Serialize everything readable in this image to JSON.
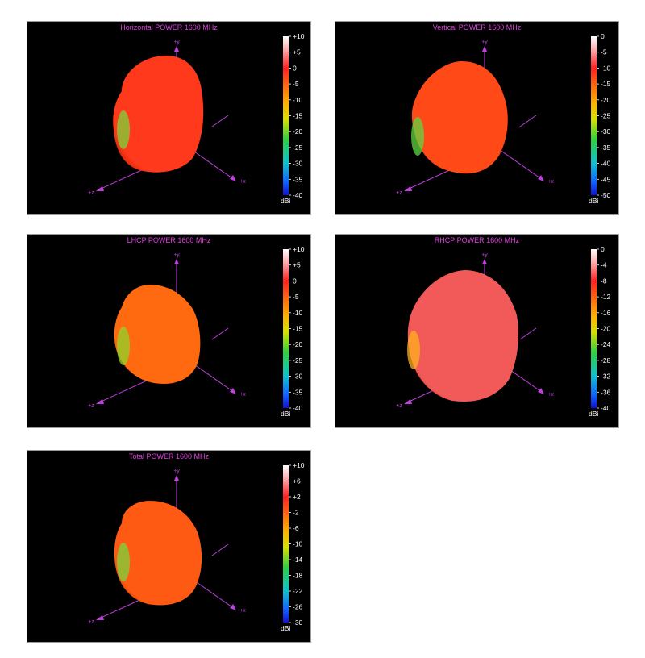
{
  "panels": [
    {
      "title": "Horizontal POWER 1600  MHz",
      "scale": {
        "min": -40,
        "max": 10,
        "ticks": [
          "+10",
          "+5",
          "0",
          "-5",
          "-10",
          "-15",
          "-20",
          "-25",
          "-30",
          "-35",
          "-40"
        ],
        "unit": "dBi"
      },
      "body_color": "#ff3a1c",
      "accent_color": "#7ad63a",
      "axes": {
        "y": "+y",
        "x": "+x",
        "z": "+z"
      }
    },
    {
      "title": "Vertical POWER 1600  MHz",
      "scale": {
        "min": -50,
        "max": 0,
        "ticks": [
          "0",
          "-5",
          "-10",
          "-15",
          "-20",
          "-25",
          "-30",
          "-35",
          "-40",
          "-45",
          "-50"
        ],
        "unit": "dBi"
      },
      "body_color": "#ff4a18",
      "accent_color": "#5fd640",
      "axes": {
        "y": "+y",
        "x": "+x",
        "z": "+z"
      }
    },
    {
      "title": "LHCP POWER 1600  MHz",
      "scale": {
        "min": -40,
        "max": 10,
        "ticks": [
          "+10",
          "+5",
          "0",
          "-5",
          "-10",
          "-15",
          "-20",
          "-25",
          "-30",
          "-35",
          "-40"
        ],
        "unit": "dBi"
      },
      "body_color": "#ff6a10",
      "accent_color": "#8ed62a",
      "axes": {
        "y": "+y",
        "x": "+x",
        "z": "+z"
      }
    },
    {
      "title": "RHCP POWER 1600  MHz",
      "scale": {
        "min": -40,
        "max": 0,
        "ticks": [
          "0",
          "-4",
          "-8",
          "-12",
          "-16",
          "-20",
          "-24",
          "-28",
          "-32",
          "-36",
          "-40"
        ],
        "unit": "dBi"
      },
      "body_color": "#f25a5a",
      "accent_color": "#ffb020",
      "axes": {
        "y": "+y",
        "x": "+x",
        "z": "+z"
      }
    },
    {
      "title": "Total POWER 1600  MHz",
      "scale": {
        "min": -30,
        "max": 10,
        "ticks": [
          "+10",
          "+6",
          "+2",
          "-2",
          "-6",
          "-10",
          "-14",
          "-18",
          "-22",
          "-26",
          "-30"
        ],
        "unit": "dBi"
      },
      "body_color": "#ff5a14",
      "accent_color": "#7ad63a",
      "axes": {
        "y": "+y",
        "x": "+x",
        "z": "+z"
      }
    }
  ]
}
